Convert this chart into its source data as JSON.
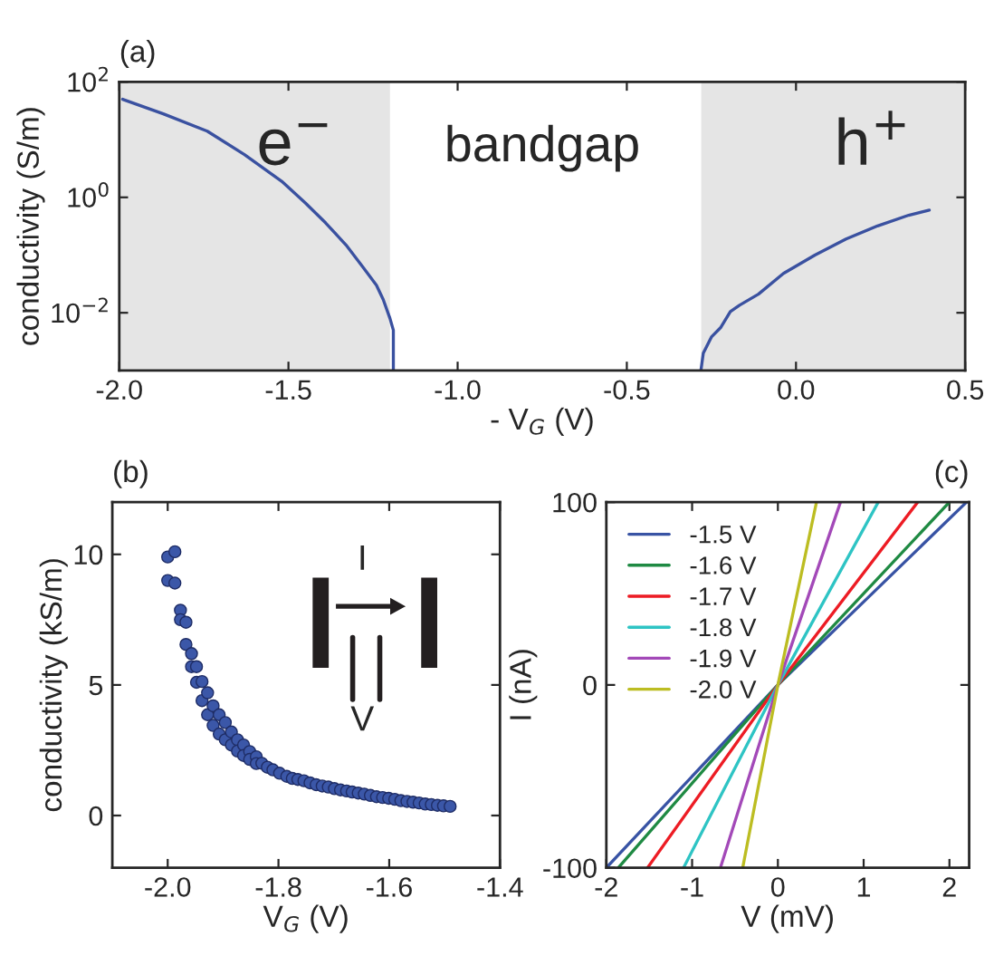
{
  "chart_data": [
    {
      "type": "line",
      "title": "(a)",
      "xlabel": "- V$_{G}$ (V)",
      "ylabel": "conductivity (S/m)",
      "log": "y",
      "xlim": [
        -2.0,
        0.5
      ],
      "xticks": [
        {
          "value": -2,
          "label": "-2.0"
        },
        -1.5,
        {
          "value": -1,
          "label": "-1.0"
        },
        -0.5,
        {
          "value": 0,
          "label": "0.0"
        },
        0.5
      ],
      "ylim": [
        0.001,
        100
      ],
      "yticks": [
        {
          "value": 0.01,
          "label": "10$^{−2}$"
        },
        {
          "value": 1,
          "label": "10$^{0}$"
        },
        {
          "value": 100,
          "label": "10$^{2}$"
        }
      ],
      "grid": false,
      "legend": false,
      "bands": [
        {
          "axis": "x",
          "from": -2.0,
          "to": -1.2,
          "label": "e$^{−}$",
          "color": "#e5e5e5"
        },
        {
          "axis": "x",
          "from": -0.28,
          "to": 0.5,
          "label": "h$^{+}$",
          "color": "#e5e5e5"
        }
      ],
      "annotations": [
        "bandgap"
      ],
      "series": [
        {
          "color": "#3a51a0",
          "x": [
            -1.99,
            -1.87,
            -1.74,
            -1.63,
            -1.52,
            -1.45,
            -1.39,
            -1.33,
            -1.28,
            -1.24,
            -1.22,
            -1.2,
            -1.19,
            -1.19
          ],
          "values": [
            50,
            28,
            14,
            5.5,
            1.9,
            0.8,
            0.36,
            0.15,
            0.062,
            0.03,
            0.017,
            0.008,
            0.005,
            0.001
          ]
        },
        {
          "color": "#3a51a0",
          "x": [
            -0.281,
            -0.274,
            -0.25,
            -0.222,
            -0.194,
            -0.167,
            -0.111,
            -0.037,
            0.056,
            0.148,
            0.241,
            0.333,
            0.394
          ],
          "values": [
            0.001,
            0.002,
            0.0038,
            0.0056,
            0.0105,
            0.0135,
            0.021,
            0.048,
            0.1,
            0.19,
            0.32,
            0.49,
            0.6
          ]
        }
      ]
    },
    {
      "type": "scatter",
      "title": "(b)",
      "xlabel": "V$_{G}$ (V)",
      "ylabel": "conductivity (kS/m)",
      "xlim": [
        -2.1,
        -1.4
      ],
      "xticks": [
        {
          "value": -2,
          "label": "-2.0"
        },
        -1.8,
        -1.6,
        -1.4
      ],
      "ylim": [
        -2,
        12
      ],
      "yticks": [
        0,
        5,
        10
      ],
      "grid": false,
      "legend": false,
      "marker": "circle",
      "annotations": [
        "I",
        "V"
      ],
      "series": [
        {
          "color": "#3b57a8",
          "x": [
            -2.0,
            -2.0,
            -1.987,
            -1.987,
            -1.977,
            -1.977,
            -1.967,
            -1.967,
            -1.957,
            -1.957,
            -1.948,
            -1.948,
            -1.938,
            -1.938,
            -1.928,
            -1.928,
            -1.918,
            -1.918,
            -1.907,
            -1.907,
            -1.896,
            -1.896,
            -1.885,
            -1.885,
            -1.874,
            -1.874,
            -1.863,
            -1.863,
            -1.852,
            -1.852,
            -1.84,
            -1.84,
            -1.83,
            -1.82,
            -1.81,
            -1.798,
            -1.785,
            -1.775,
            -1.765,
            -1.754,
            -1.743,
            -1.732,
            -1.721,
            -1.71,
            -1.699,
            -1.688,
            -1.677,
            -1.667,
            -1.656,
            -1.645,
            -1.634,
            -1.623,
            -1.612,
            -1.601,
            -1.59,
            -1.579,
            -1.568,
            -1.557,
            -1.546,
            -1.535,
            -1.524,
            -1.513,
            -1.502,
            -1.49
          ],
          "values": [
            9.9,
            9.0,
            10.1,
            8.9,
            7.86,
            7.5,
            7.4,
            6.55,
            6.2,
            5.7,
            5.7,
            5.1,
            5.13,
            4.4,
            4.7,
            3.86,
            4.2,
            3.45,
            3.86,
            3.12,
            3.56,
            2.9,
            3.2,
            2.7,
            2.9,
            2.47,
            2.7,
            2.3,
            2.45,
            2.15,
            2.25,
            1.99,
            2.0,
            1.85,
            1.75,
            1.62,
            1.5,
            1.42,
            1.38,
            1.33,
            1.25,
            1.18,
            1.13,
            1.09,
            1.03,
            0.98,
            0.94,
            0.9,
            0.86,
            0.82,
            0.77,
            0.72,
            0.69,
            0.66,
            0.62,
            0.57,
            0.54,
            0.51,
            0.48,
            0.44,
            0.42,
            0.39,
            0.37,
            0.35
          ]
        }
      ]
    },
    {
      "type": "line",
      "title": "(c)",
      "xlabel": "V (mV)",
      "ylabel": "I (nA)",
      "xlim": [
        -2,
        2.23
      ],
      "xticks": [
        -2,
        -1,
        0,
        1,
        2
      ],
      "ylim": [
        -100,
        100
      ],
      "yticks": [
        -100,
        0,
        100
      ],
      "grid": false,
      "legend": "top left",
      "series": [
        {
          "name": "-1.5 V",
          "color": "#3853a4",
          "x": [
            -2.0,
            0,
            2.2
          ],
          "values": [
            -100,
            0,
            100
          ]
        },
        {
          "name": "-1.6 V",
          "color": "#1f8a43",
          "x": [
            -1.86,
            0,
            2.0
          ],
          "values": [
            -100,
            0,
            100
          ]
        },
        {
          "name": "-1.7 V",
          "color": "#ed1c24",
          "x": [
            -1.52,
            0,
            1.63
          ],
          "values": [
            -100,
            0,
            100
          ]
        },
        {
          "name": "-1.8 V",
          "color": "#2ec4c4",
          "x": [
            -1.1,
            0,
            1.17
          ],
          "values": [
            -100,
            0,
            100
          ]
        },
        {
          "name": "-1.9 V",
          "color": "#a349b8",
          "x": [
            -0.67,
            0,
            0.73
          ],
          "values": [
            -100,
            0,
            100
          ]
        },
        {
          "name": "-2.0 V",
          "color": "#bcbd22",
          "x": [
            -0.41,
            0,
            0.45
          ],
          "values": [
            -100,
            0,
            100
          ]
        }
      ]
    }
  ]
}
